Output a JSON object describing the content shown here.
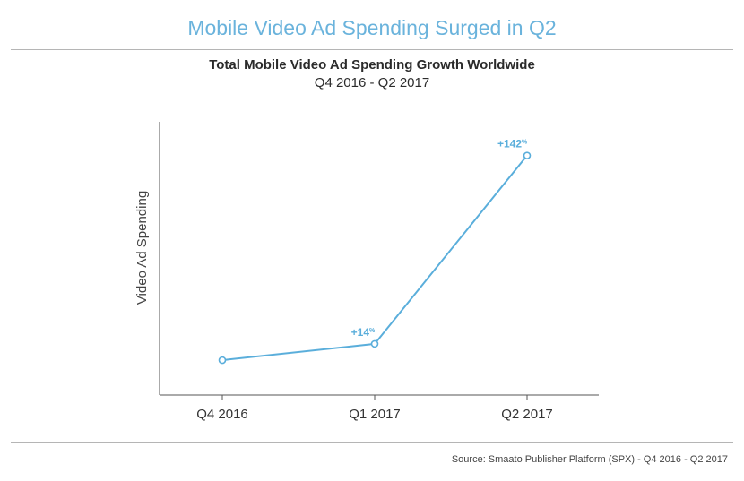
{
  "header": {
    "headline": "Mobile Video Ad Spending Surged in Q2",
    "source": "Source: Smaato Publisher Platform (SPX) - Q4 2016 - Q2 2017"
  },
  "colors": {
    "accent": "#5aaedb",
    "axis": "#555555",
    "rule": "#b5b5b5"
  },
  "chart_data": {
    "type": "line",
    "title": "Total Mobile Video Ad Spending Growth Worldwide",
    "subtitle": "Q4 2016 - Q2 2017",
    "xlabel": "",
    "ylabel": "Video Ad Spending",
    "categories": [
      "Q4 2016",
      "Q1 2017",
      "Q2 2017"
    ],
    "series": [
      {
        "values": [
          100,
          114,
          276
        ]
      }
    ],
    "data_labels": [
      "",
      "+14",
      "+142"
    ],
    "data_label_unit": "%",
    "ylim": [
      70,
      305
    ],
    "grid": false,
    "y_ticks_shown": false
  }
}
